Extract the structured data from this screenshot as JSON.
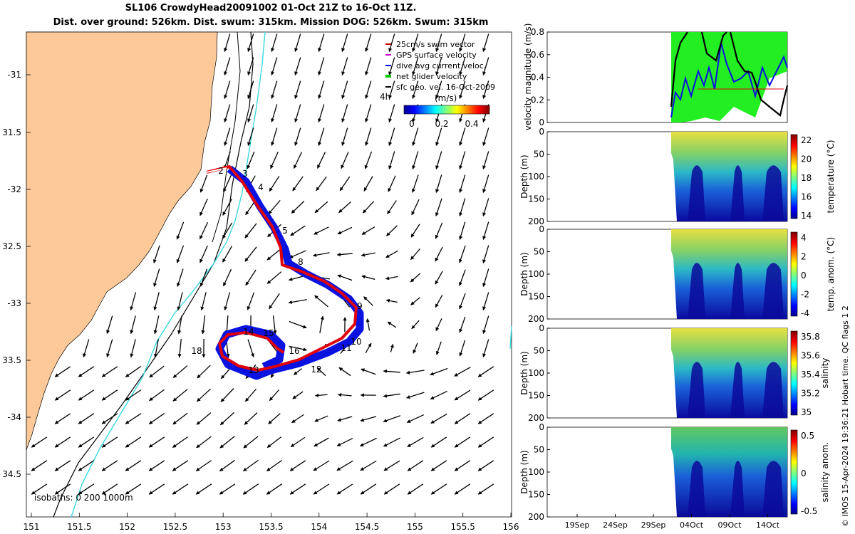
{
  "title": {
    "line1": "SL106 CrowdyHead20091002 01-Oct 21Z to 16-Oct 11Z.",
    "line2": "Dist. over ground: 526km. Dist. swum: 315km. Mission DOG: 526km. Swum: 315km"
  },
  "map": {
    "lon_ticks": [
      "151",
      "151.5",
      "152",
      "152.5",
      "153",
      "153.5",
      "154",
      "154.5",
      "155",
      "155.5",
      "156"
    ],
    "lat_ticks": [
      "-31",
      "31.5",
      "-32",
      "32.5",
      "-33",
      "33.5",
      "-34",
      "34.5"
    ],
    "legend": [
      {
        "label": "25cm/s swim vector",
        "color": "#cc0000"
      },
      {
        "label": "GPS surface velocity",
        "color": "#cc00cc"
      },
      {
        "label": "dive avg current veloc.",
        "color": "#0000ff"
      },
      {
        "label": "net glider velocity",
        "color": "#00cc00"
      },
      {
        "label": "sfc geo. vel. 16-Oct-2009",
        "color": "#000000"
      }
    ],
    "legend_time": "4h",
    "colorbar": {
      "label": "(m/s)",
      "ticks": [
        "0",
        "0.2",
        "0.4"
      ]
    },
    "isobaths_label": "isobaths: 0   200  1000m",
    "day_labels": [
      "2",
      "3",
      "4",
      "5",
      "8",
      "9",
      "10",
      "11",
      "12",
      "13",
      "14",
      "15",
      "16",
      "18"
    ],
    "colors": {
      "land": "#fdc998",
      "track_red": "#e0000a",
      "track_blue": "#0a12e0",
      "isobath_200": "#38d8e0"
    }
  },
  "panels": {
    "velocity": {
      "ylabel": "velocity magnitude (m/s)",
      "ticks": [
        "0",
        "0.2",
        "0.4",
        "0.6",
        "0.8"
      ]
    },
    "temperature": {
      "ylabel": "Depth (m)",
      "cb_label": "temperature (°C)",
      "cb_ticks": [
        "22",
        "20",
        "18",
        "16",
        "14"
      ]
    },
    "temp_anom": {
      "ylabel": "Depth (m)",
      "cb_label": "temp. anom. (°C)",
      "cb_ticks": [
        "4",
        "2",
        "0",
        "-2",
        "-4"
      ]
    },
    "salinity": {
      "ylabel": "Depth (m)",
      "cb_label": "salinity",
      "cb_ticks": [
        "35.8",
        "35.6",
        "35.4",
        "35.2",
        "35"
      ]
    },
    "sal_anom": {
      "ylabel": "Depth (m)",
      "cb_label": "salinity anom.",
      "cb_ticks": [
        "0.5",
        "0",
        "-0.5"
      ]
    },
    "depth_ticks": [
      "0",
      "50",
      "100",
      "150",
      "200"
    ],
    "date_ticks": [
      "19Sep",
      "24Sep",
      "29Sep",
      "04Oct",
      "09Oct",
      "14Oct"
    ]
  },
  "footer": "© IMOS 15-Apr-2024 19:36:21 Hobart time. QC flags 1  2"
}
